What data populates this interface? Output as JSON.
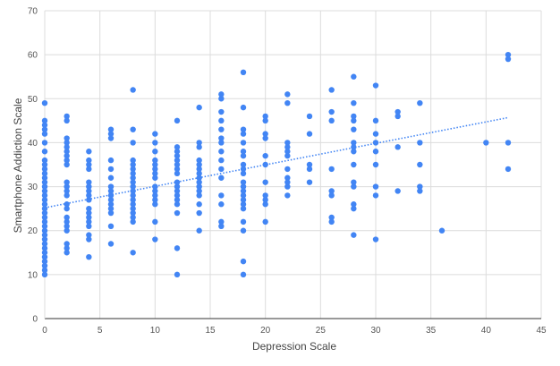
{
  "chart_data": {
    "type": "scatter",
    "xlabel": "Depression Scale",
    "ylabel": "Smartphone Addiction Scale",
    "xlim": [
      0,
      45
    ],
    "ylim": [
      0,
      70
    ],
    "x_ticks": [
      0,
      5,
      10,
      15,
      20,
      25,
      30,
      35,
      40,
      45
    ],
    "y_ticks": [
      0,
      10,
      20,
      30,
      40,
      50,
      60,
      70
    ],
    "grid": true,
    "legend": "none",
    "point_color": "#4285F4",
    "trendline": {
      "type": "linear",
      "style": "dotted",
      "color": "#4285F4",
      "x": [
        0,
        42
      ],
      "y": [
        25.2,
        45.7
      ]
    },
    "points": [
      [
        0,
        10
      ],
      [
        0,
        11
      ],
      [
        0,
        12
      ],
      [
        0,
        13
      ],
      [
        0,
        14
      ],
      [
        0,
        15
      ],
      [
        0,
        16
      ],
      [
        0,
        17
      ],
      [
        0,
        18
      ],
      [
        0,
        19
      ],
      [
        0,
        20
      ],
      [
        0,
        21
      ],
      [
        0,
        22
      ],
      [
        0,
        23
      ],
      [
        0,
        24
      ],
      [
        0,
        25
      ],
      [
        0,
        26
      ],
      [
        0,
        27
      ],
      [
        0,
        28
      ],
      [
        0,
        29
      ],
      [
        0,
        30
      ],
      [
        0,
        31
      ],
      [
        0,
        32
      ],
      [
        0,
        33
      ],
      [
        0,
        34
      ],
      [
        0,
        35
      ],
      [
        0,
        36
      ],
      [
        0,
        38
      ],
      [
        0,
        40
      ],
      [
        0,
        42
      ],
      [
        0,
        43
      ],
      [
        0,
        44
      ],
      [
        0,
        45
      ],
      [
        0,
        49
      ],
      [
        2,
        15
      ],
      [
        2,
        16
      ],
      [
        2,
        17
      ],
      [
        2,
        20
      ],
      [
        2,
        21
      ],
      [
        2,
        22
      ],
      [
        2,
        23
      ],
      [
        2,
        25
      ],
      [
        2,
        26
      ],
      [
        2,
        28
      ],
      [
        2,
        29
      ],
      [
        2,
        30
      ],
      [
        2,
        31
      ],
      [
        2,
        35
      ],
      [
        2,
        36
      ],
      [
        2,
        37
      ],
      [
        2,
        38
      ],
      [
        2,
        39
      ],
      [
        2,
        40
      ],
      [
        2,
        41
      ],
      [
        2,
        45
      ],
      [
        2,
        46
      ],
      [
        4,
        14
      ],
      [
        4,
        18
      ],
      [
        4,
        19
      ],
      [
        4,
        21
      ],
      [
        4,
        22
      ],
      [
        4,
        23
      ],
      [
        4,
        24
      ],
      [
        4,
        25
      ],
      [
        4,
        27
      ],
      [
        4,
        28
      ],
      [
        4,
        29
      ],
      [
        4,
        30
      ],
      [
        4,
        31
      ],
      [
        4,
        34
      ],
      [
        4,
        35
      ],
      [
        4,
        36
      ],
      [
        4,
        38
      ],
      [
        6,
        17
      ],
      [
        6,
        21
      ],
      [
        6,
        24
      ],
      [
        6,
        25
      ],
      [
        6,
        26
      ],
      [
        6,
        27
      ],
      [
        6,
        28
      ],
      [
        6,
        29
      ],
      [
        6,
        30
      ],
      [
        6,
        32
      ],
      [
        6,
        34
      ],
      [
        6,
        36
      ],
      [
        6,
        41
      ],
      [
        6,
        42
      ],
      [
        6,
        43
      ],
      [
        8,
        15
      ],
      [
        8,
        22
      ],
      [
        8,
        23
      ],
      [
        8,
        24
      ],
      [
        8,
        25
      ],
      [
        8,
        26
      ],
      [
        8,
        27
      ],
      [
        8,
        28
      ],
      [
        8,
        29
      ],
      [
        8,
        30
      ],
      [
        8,
        31
      ],
      [
        8,
        32
      ],
      [
        8,
        33
      ],
      [
        8,
        34
      ],
      [
        8,
        35
      ],
      [
        8,
        36
      ],
      [
        8,
        40
      ],
      [
        8,
        43
      ],
      [
        8,
        52
      ],
      [
        10,
        18
      ],
      [
        10,
        22
      ],
      [
        10,
        26
      ],
      [
        10,
        27
      ],
      [
        10,
        28
      ],
      [
        10,
        29
      ],
      [
        10,
        30
      ],
      [
        10,
        32
      ],
      [
        10,
        33
      ],
      [
        10,
        34
      ],
      [
        10,
        35
      ],
      [
        10,
        36
      ],
      [
        10,
        38
      ],
      [
        10,
        40
      ],
      [
        10,
        42
      ],
      [
        12,
        10
      ],
      [
        12,
        16
      ],
      [
        12,
        24
      ],
      [
        12,
        26
      ],
      [
        12,
        27
      ],
      [
        12,
        28
      ],
      [
        12,
        29
      ],
      [
        12,
        30
      ],
      [
        12,
        31
      ],
      [
        12,
        33
      ],
      [
        12,
        34
      ],
      [
        12,
        35
      ],
      [
        12,
        36
      ],
      [
        12,
        37
      ],
      [
        12,
        38
      ],
      [
        12,
        39
      ],
      [
        12,
        45
      ],
      [
        14,
        20
      ],
      [
        14,
        24
      ],
      [
        14,
        26
      ],
      [
        14,
        28
      ],
      [
        14,
        29
      ],
      [
        14,
        30
      ],
      [
        14,
        31
      ],
      [
        14,
        32
      ],
      [
        14,
        33
      ],
      [
        14,
        34
      ],
      [
        14,
        35
      ],
      [
        14,
        36
      ],
      [
        14,
        39
      ],
      [
        14,
        40
      ],
      [
        14,
        48
      ],
      [
        16,
        21
      ],
      [
        16,
        22
      ],
      [
        16,
        26
      ],
      [
        16,
        28
      ],
      [
        16,
        32
      ],
      [
        16,
        34
      ],
      [
        16,
        36
      ],
      [
        16,
        38
      ],
      [
        16,
        40
      ],
      [
        16,
        41
      ],
      [
        16,
        43
      ],
      [
        16,
        45
      ],
      [
        16,
        47
      ],
      [
        16,
        50
      ],
      [
        16,
        51
      ],
      [
        18,
        10
      ],
      [
        18,
        13
      ],
      [
        18,
        20
      ],
      [
        18,
        22
      ],
      [
        18,
        25
      ],
      [
        18,
        26
      ],
      [
        18,
        27
      ],
      [
        18,
        28
      ],
      [
        18,
        29
      ],
      [
        18,
        30
      ],
      [
        18,
        31
      ],
      [
        18,
        33
      ],
      [
        18,
        34
      ],
      [
        18,
        35
      ],
      [
        18,
        37
      ],
      [
        18,
        38
      ],
      [
        18,
        40
      ],
      [
        18,
        42
      ],
      [
        18,
        43
      ],
      [
        18,
        48
      ],
      [
        18,
        56
      ],
      [
        20,
        22
      ],
      [
        20,
        26
      ],
      [
        20,
        27
      ],
      [
        20,
        28
      ],
      [
        20,
        31
      ],
      [
        20,
        35
      ],
      [
        20,
        37
      ],
      [
        20,
        41
      ],
      [
        20,
        42
      ],
      [
        20,
        45
      ],
      [
        20,
        46
      ],
      [
        22,
        28
      ],
      [
        22,
        30
      ],
      [
        22,
        31
      ],
      [
        22,
        32
      ],
      [
        22,
        34
      ],
      [
        22,
        37
      ],
      [
        22,
        38
      ],
      [
        22,
        39
      ],
      [
        22,
        40
      ],
      [
        22,
        49
      ],
      [
        22,
        51
      ],
      [
        24,
        31
      ],
      [
        24,
        34
      ],
      [
        24,
        35
      ],
      [
        24,
        42
      ],
      [
        24,
        46
      ],
      [
        26,
        22
      ],
      [
        26,
        23
      ],
      [
        26,
        28
      ],
      [
        26,
        29
      ],
      [
        26,
        34
      ],
      [
        26,
        45
      ],
      [
        26,
        47
      ],
      [
        26,
        52
      ],
      [
        28,
        19
      ],
      [
        28,
        25
      ],
      [
        28,
        26
      ],
      [
        28,
        30
      ],
      [
        28,
        31
      ],
      [
        28,
        35
      ],
      [
        28,
        38
      ],
      [
        28,
        39
      ],
      [
        28,
        40
      ],
      [
        28,
        43
      ],
      [
        28,
        45
      ],
      [
        28,
        46
      ],
      [
        28,
        49
      ],
      [
        28,
        55
      ],
      [
        30,
        18
      ],
      [
        30,
        28
      ],
      [
        30,
        30
      ],
      [
        30,
        35
      ],
      [
        30,
        38
      ],
      [
        30,
        40
      ],
      [
        30,
        42
      ],
      [
        30,
        45
      ],
      [
        30,
        53
      ],
      [
        32,
        29
      ],
      [
        32,
        39
      ],
      [
        32,
        46
      ],
      [
        32,
        47
      ],
      [
        34,
        29
      ],
      [
        34,
        30
      ],
      [
        34,
        35
      ],
      [
        34,
        40
      ],
      [
        34,
        49
      ],
      [
        36,
        20
      ],
      [
        40,
        40
      ],
      [
        42,
        34
      ],
      [
        42,
        40
      ],
      [
        42,
        59
      ],
      [
        42,
        60
      ]
    ]
  }
}
